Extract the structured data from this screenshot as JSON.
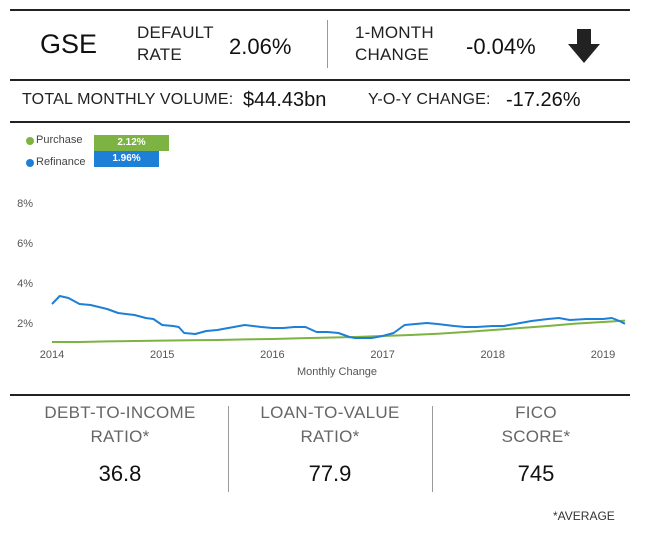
{
  "header": {
    "title": "GSE",
    "default_rate_label": [
      "DEFAULT",
      "RATE"
    ],
    "default_rate_value": "2.06%",
    "change_label": [
      "1-MONTH",
      "CHANGE"
    ],
    "change_value": "-0.04%",
    "change_icon": "arrow-down-icon"
  },
  "volume": {
    "label": "TOTAL MONTHLY VOLUME:",
    "value": "$44.43bn",
    "yoy_label": "Y-O-Y CHANGE:",
    "yoy_value": "-17.26%"
  },
  "legend": [
    {
      "name": "Purchase",
      "value_label": "2.12%",
      "color": "#7cb342"
    },
    {
      "name": "Refinance",
      "value_label": "1.96%",
      "color": "#1e7fd6"
    }
  ],
  "chart_data": {
    "type": "line",
    "xlabel": "Monthly Change",
    "ylabel": "",
    "x_ticks": [
      "2014",
      "2015",
      "2016",
      "2017",
      "2018",
      "2019"
    ],
    "y_ticks": [
      "2%",
      "4%",
      "6%",
      "8%"
    ],
    "ylim": [
      1,
      8
    ],
    "xlim": [
      2014.0,
      2019.3
    ],
    "grid": false,
    "legend_position": "top-left",
    "series": [
      {
        "name": "Purchase",
        "color": "#7cb342",
        "points": [
          [
            2014.0,
            1.05
          ],
          [
            2014.25,
            1.05
          ],
          [
            2014.5,
            1.08
          ],
          [
            2014.75,
            1.1
          ],
          [
            2015.0,
            1.12
          ],
          [
            2015.25,
            1.14
          ],
          [
            2015.5,
            1.15
          ],
          [
            2015.75,
            1.18
          ],
          [
            2016.0,
            1.2
          ],
          [
            2016.25,
            1.24
          ],
          [
            2016.5,
            1.27
          ],
          [
            2016.75,
            1.3
          ],
          [
            2017.0,
            1.35
          ],
          [
            2017.25,
            1.4
          ],
          [
            2017.5,
            1.46
          ],
          [
            2017.75,
            1.55
          ],
          [
            2018.0,
            1.65
          ],
          [
            2018.25,
            1.75
          ],
          [
            2018.5,
            1.85
          ],
          [
            2018.75,
            1.97
          ],
          [
            2019.0,
            2.05
          ],
          [
            2019.2,
            2.12
          ]
        ]
      },
      {
        "name": "Refinance",
        "color": "#1e7fd6",
        "points": [
          [
            2014.0,
            2.95
          ],
          [
            2014.07,
            3.35
          ],
          [
            2014.15,
            3.25
          ],
          [
            2014.25,
            2.95
          ],
          [
            2014.35,
            2.9
          ],
          [
            2014.5,
            2.7
          ],
          [
            2014.6,
            2.5
          ],
          [
            2014.75,
            2.4
          ],
          [
            2014.85,
            2.25
          ],
          [
            2014.92,
            2.2
          ],
          [
            2015.0,
            1.9
          ],
          [
            2015.1,
            1.85
          ],
          [
            2015.15,
            1.8
          ],
          [
            2015.2,
            1.5
          ],
          [
            2015.3,
            1.45
          ],
          [
            2015.4,
            1.6
          ],
          [
            2015.5,
            1.65
          ],
          [
            2015.6,
            1.75
          ],
          [
            2015.75,
            1.9
          ],
          [
            2015.9,
            1.8
          ],
          [
            2016.0,
            1.75
          ],
          [
            2016.1,
            1.75
          ],
          [
            2016.2,
            1.8
          ],
          [
            2016.3,
            1.8
          ],
          [
            2016.4,
            1.55
          ],
          [
            2016.5,
            1.55
          ],
          [
            2016.6,
            1.5
          ],
          [
            2016.7,
            1.3
          ],
          [
            2016.75,
            1.25
          ],
          [
            2016.9,
            1.25
          ],
          [
            2017.0,
            1.35
          ],
          [
            2017.1,
            1.5
          ],
          [
            2017.2,
            1.9
          ],
          [
            2017.3,
            1.95
          ],
          [
            2017.4,
            2.0
          ],
          [
            2017.5,
            1.95
          ],
          [
            2017.65,
            1.85
          ],
          [
            2017.75,
            1.8
          ],
          [
            2017.85,
            1.8
          ],
          [
            2018.0,
            1.85
          ],
          [
            2018.1,
            1.85
          ],
          [
            2018.2,
            1.95
          ],
          [
            2018.35,
            2.1
          ],
          [
            2018.5,
            2.2
          ],
          [
            2018.6,
            2.25
          ],
          [
            2018.7,
            2.15
          ],
          [
            2018.85,
            2.2
          ],
          [
            2019.0,
            2.2
          ],
          [
            2019.08,
            2.25
          ],
          [
            2019.15,
            2.1
          ],
          [
            2019.2,
            1.96
          ]
        ]
      }
    ]
  },
  "stats": [
    {
      "label": [
        "DEBT-TO-INCOME",
        "RATIO*"
      ],
      "value": "36.8"
    },
    {
      "label": [
        "LOAN-TO-VALUE",
        "RATIO*"
      ],
      "value": "77.9"
    },
    {
      "label": [
        "FICO",
        "SCORE*"
      ],
      "value": "745"
    }
  ],
  "footnote": "*AVERAGE"
}
